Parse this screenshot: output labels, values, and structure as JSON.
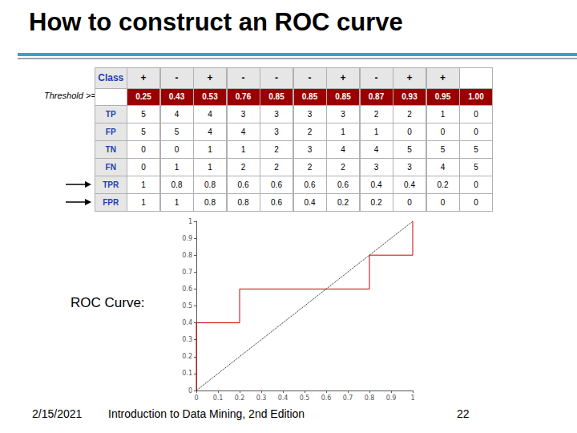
{
  "title": "How to construct an ROC curve",
  "table": {
    "rows": [
      [
        "Class",
        "+",
        "-",
        "+",
        "-",
        "-",
        "-",
        "+",
        "-",
        "+",
        "+",
        null
      ],
      [
        "Threshold >=",
        "0.25",
        "0.43",
        "0.53",
        "0.76",
        "0.85",
        "0.85",
        "0.85",
        "0.87",
        "0.93",
        "0.95",
        "1.00"
      ],
      [
        "TP",
        "5",
        "4",
        "4",
        "3",
        "3",
        "3",
        "3",
        "2",
        "2",
        "1",
        "0"
      ],
      [
        "FP",
        "5",
        "5",
        "4",
        "4",
        "3",
        "2",
        "1",
        "1",
        "0",
        "0",
        "0"
      ],
      [
        "TN",
        "0",
        "0",
        "1",
        "1",
        "2",
        "3",
        "4",
        "4",
        "5",
        "5",
        "5"
      ],
      [
        "FN",
        "0",
        "1",
        "1",
        "2",
        "2",
        "2",
        "2",
        "3",
        "3",
        "4",
        "5"
      ],
      [
        "TPR",
        "1",
        "0.8",
        "0.8",
        "0.6",
        "0.6",
        "0.6",
        "0.6",
        "0.4",
        "0.4",
        "0.2",
        "0"
      ],
      [
        "FPR",
        "1",
        "1",
        "0.8",
        "0.8",
        "0.6",
        "0.4",
        "0.2",
        "0.2",
        "0",
        "0",
        "0"
      ]
    ]
  },
  "chart_label": "ROC Curve:",
  "chart_data": {
    "type": "line",
    "series": [
      {
        "color": "#cc0000",
        "line_style": "solid",
        "x": [
          0,
          0,
          0,
          0.2,
          0.2,
          0.4,
          0.6,
          0.8,
          0.8,
          1,
          1
        ],
        "values": [
          0,
          0.2,
          0.4,
          0.4,
          0.6,
          0.6,
          0.6,
          0.6,
          0.8,
          0.8,
          1
        ]
      },
      {
        "color": "#000000",
        "line_style": "dotted",
        "x": [
          0,
          1
        ],
        "values": [
          0,
          1
        ]
      }
    ],
    "xlim": [
      0,
      1
    ],
    "xticks": [
      0,
      0.1,
      0.2,
      0.3,
      0.4,
      0.5,
      0.6,
      0.7,
      0.8,
      0.9,
      1
    ],
    "ylim": [
      0,
      1
    ],
    "yticks": [
      0,
      0.1,
      0.2,
      0.3,
      0.4,
      0.5,
      0.6,
      0.7,
      0.8,
      0.9,
      1
    ],
    "grid": false
  },
  "footer": {
    "date": "2/15/2021",
    "source": "Introduction to Data Mining, 2nd Edition",
    "page": "22"
  }
}
